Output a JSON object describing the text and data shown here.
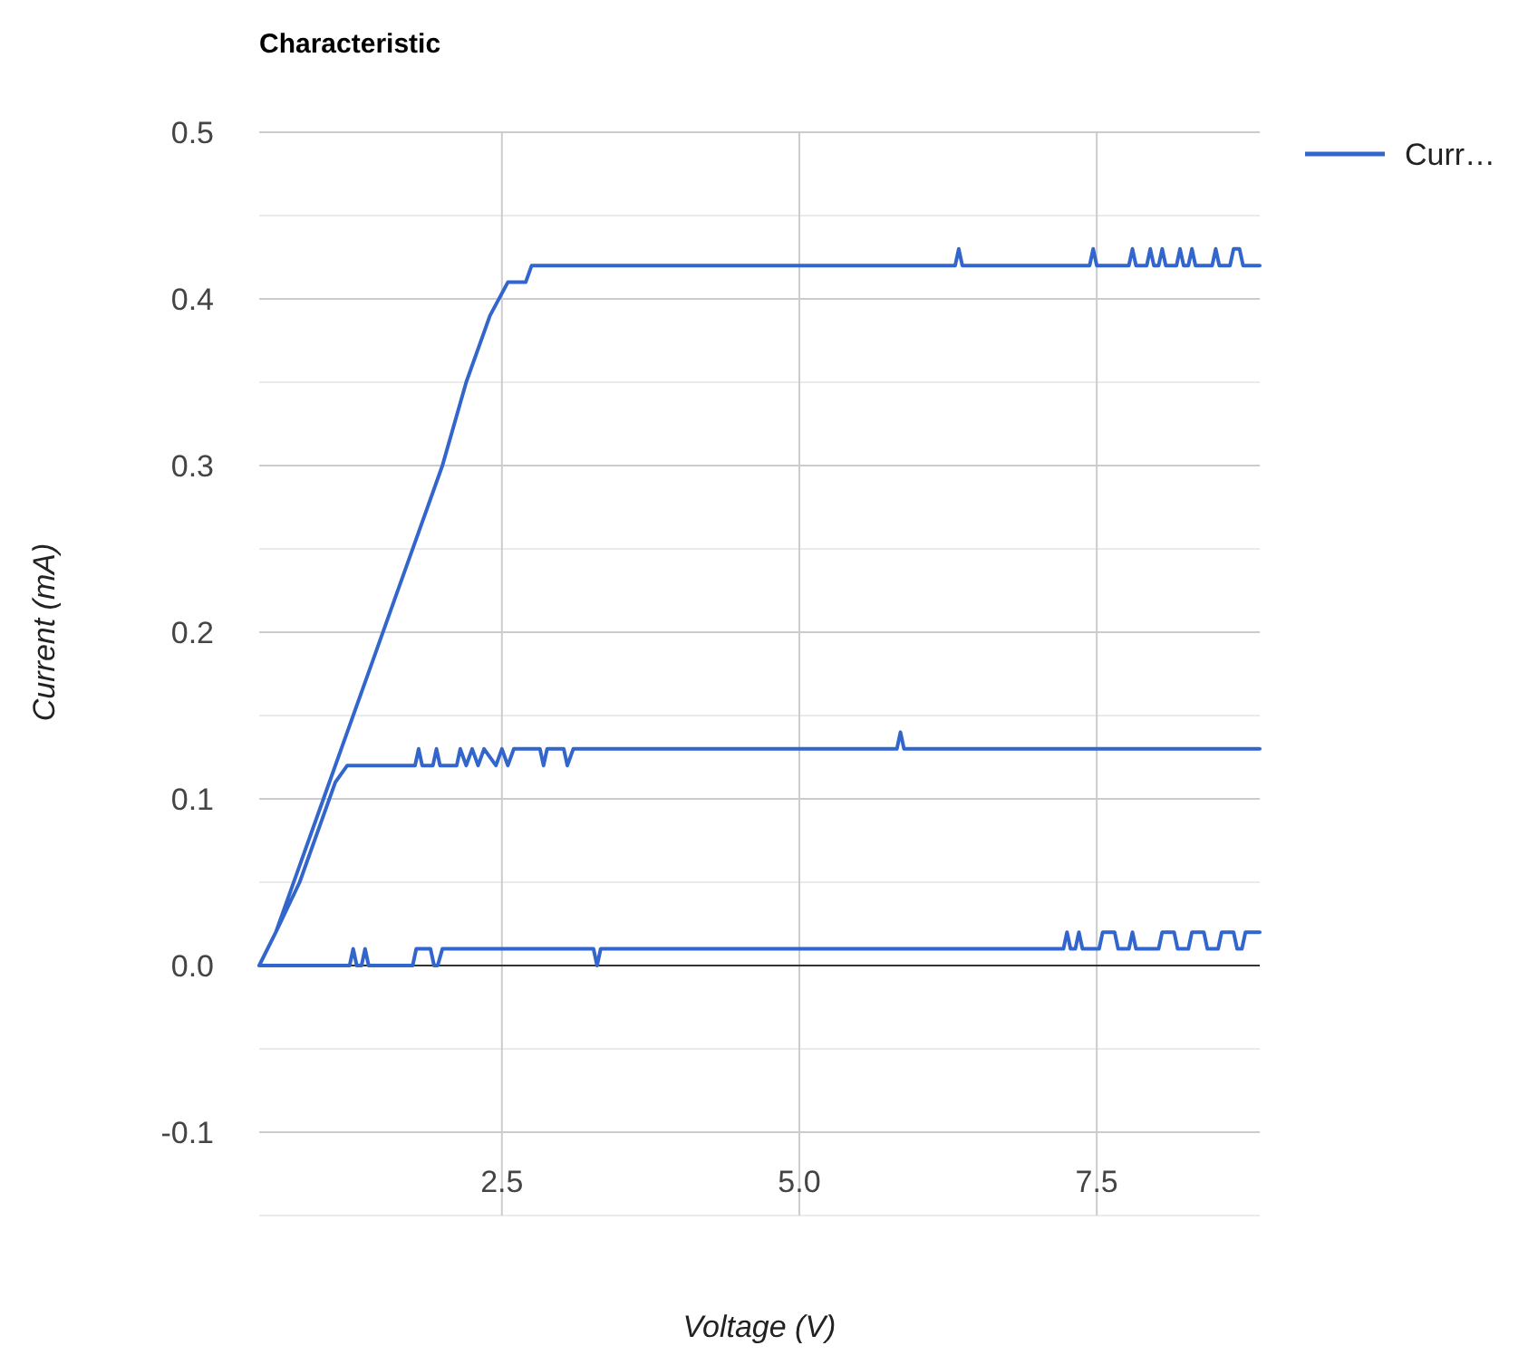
{
  "chart_data": {
    "type": "line",
    "title": "Characteristic",
    "xlabel": "Voltage (V)",
    "ylabel": "Current (mA)",
    "xlim": [
      0.46,
      8.87
    ],
    "xticks": [
      2.5,
      {
        "value": 5,
        "label": "5.0"
      },
      7.5
    ],
    "ylim": [
      -0.15,
      0.5
    ],
    "yticks": [
      {
        "value": -0.15,
        "label": null
      },
      {
        "value": -0.1,
        "label": "-0.1"
      },
      {
        "value": -0.05,
        "label": null
      },
      {
        "value": 0,
        "label": "0.0"
      },
      {
        "value": 0.05,
        "label": null
      },
      0.1,
      {
        "value": 0.15,
        "label": null
      },
      0.2,
      {
        "value": 0.25,
        "label": null
      },
      0.3,
      {
        "value": 0.35,
        "label": null
      },
      0.4,
      {
        "value": 0.45,
        "label": null
      },
      0.5
    ],
    "grid": true,
    "legend": "right",
    "marker": "none",
    "line_style": "solid",
    "ref_lines": [
      {
        "axis": "y",
        "value": 0,
        "color": "#333333"
      }
    ],
    "series": [
      {
        "name": "Curr…",
        "color": "#3366cc",
        "x": [
          0.46,
          0.6,
          0.8,
          1.0,
          1.2,
          1.4,
          1.6,
          1.8,
          2.0,
          2.2,
          2.4,
          2.55,
          2.7,
          2.75,
          6.31,
          6.34,
          6.37,
          7.44,
          7.47,
          7.5,
          7.77,
          7.8,
          7.83,
          7.92,
          7.95,
          7.98,
          8.02,
          8.05,
          8.08,
          8.17,
          8.2,
          8.23,
          8.27,
          8.3,
          8.33,
          8.47,
          8.5,
          8.53,
          8.62,
          8.65,
          8.7,
          8.73,
          8.87,
          null,
          0.46,
          0.6,
          0.8,
          1.0,
          1.1,
          1.2,
          1.77,
          1.8,
          1.83,
          1.92,
          1.95,
          1.98,
          2.12,
          2.15,
          2.2,
          2.25,
          2.3,
          2.35,
          2.45,
          2.5,
          2.55,
          2.6,
          2.65,
          2.82,
          2.85,
          2.88,
          3.02,
          3.05,
          3.1,
          5.82,
          5.85,
          5.88,
          8.87,
          null,
          0.46,
          1.22,
          1.25,
          1.28,
          1.32,
          1.35,
          1.38,
          1.75,
          1.78,
          1.9,
          1.93,
          1.96,
          2.0,
          3.27,
          3.3,
          3.33,
          7.22,
          7.25,
          7.28,
          7.32,
          7.35,
          7.38,
          7.52,
          7.55,
          7.65,
          7.68,
          7.77,
          7.8,
          7.83,
          8.02,
          8.05,
          8.15,
          8.18,
          8.27,
          8.3,
          8.4,
          8.43,
          8.52,
          8.55,
          8.65,
          8.68,
          8.72,
          8.75,
          8.87
        ],
        "values": [
          0,
          0.02,
          0.06,
          0.1,
          0.14,
          0.18,
          0.22,
          0.26,
          0.3,
          0.35,
          0.39,
          0.41,
          0.41,
          0.42,
          0.42,
          0.43,
          0.42,
          0.42,
          0.43,
          0.42,
          0.42,
          0.43,
          0.42,
          0.42,
          0.43,
          0.42,
          0.42,
          0.43,
          0.42,
          0.42,
          0.43,
          0.42,
          0.42,
          0.43,
          0.42,
          0.42,
          0.43,
          0.42,
          0.42,
          0.43,
          0.43,
          0.42,
          0.42,
          null,
          0,
          0.02,
          0.05,
          0.09,
          0.11,
          0.12,
          0.12,
          0.13,
          0.12,
          0.12,
          0.13,
          0.12,
          0.12,
          0.13,
          0.12,
          0.13,
          0.12,
          0.13,
          0.12,
          0.13,
          0.12,
          0.13,
          0.13,
          0.13,
          0.12,
          0.13,
          0.13,
          0.12,
          0.13,
          0.13,
          0.14,
          0.13,
          0.13,
          null,
          0,
          0,
          0.01,
          0,
          0,
          0.01,
          0,
          0,
          0.01,
          0.01,
          0,
          0,
          0.01,
          0.01,
          0,
          0.01,
          0.01,
          0.02,
          0.01,
          0.01,
          0.02,
          0.01,
          0.01,
          0.02,
          0.02,
          0.01,
          0.01,
          0.02,
          0.01,
          0.01,
          0.02,
          0.02,
          0.01,
          0.01,
          0.02,
          0.02,
          0.01,
          0.01,
          0.02,
          0.02,
          0.01,
          0.01,
          0.02,
          0.02
        ]
      }
    ]
  }
}
